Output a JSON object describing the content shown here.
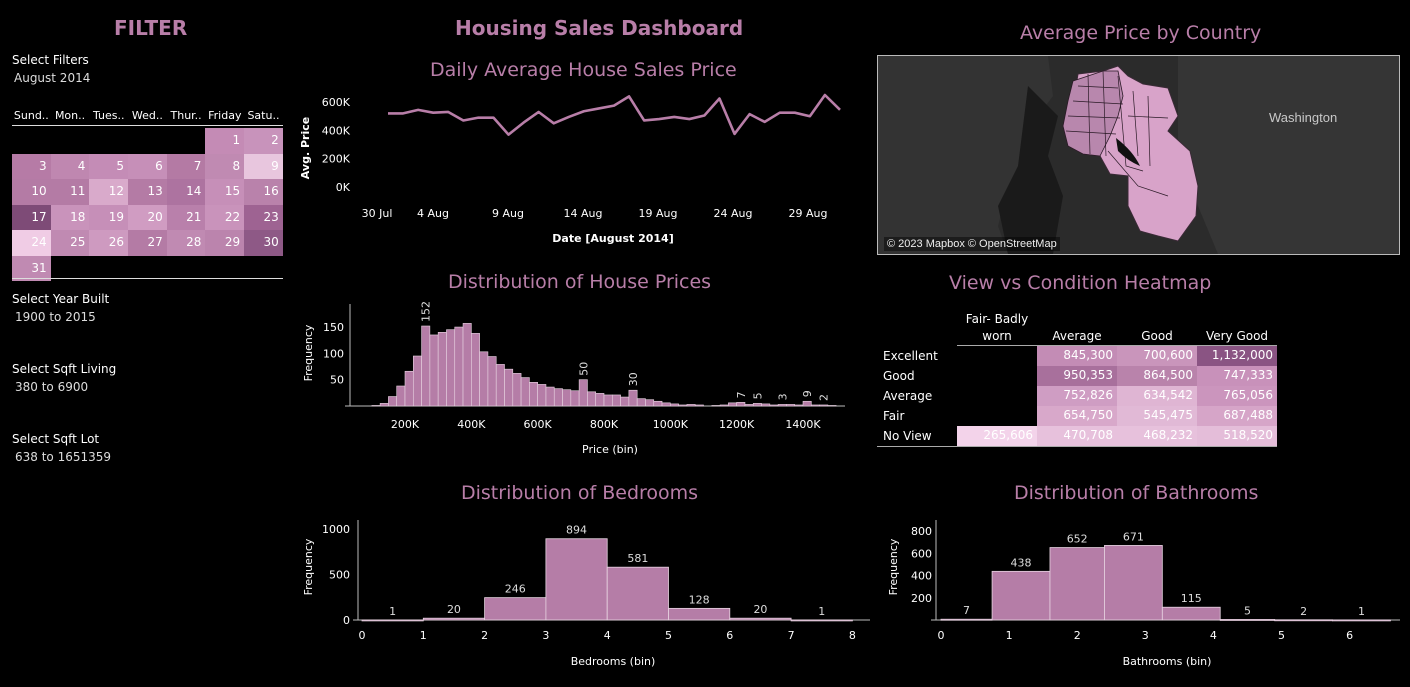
{
  "filter": {
    "title": "FILTER",
    "select_filters_label": "Select Filters",
    "date_value": "August 2014",
    "calendar": {
      "days": [
        "Sund..",
        "Mon..",
        "Tues..",
        "Wed..",
        "Thur..",
        "Friday",
        "Satu.."
      ],
      "start_offset": 5,
      "cells": [
        "1",
        "2",
        "3",
        "4",
        "5",
        "6",
        "7",
        "8",
        "9",
        "10",
        "11",
        "12",
        "13",
        "14",
        "15",
        "16",
        "17",
        "18",
        "19",
        "20",
        "21",
        "22",
        "23",
        "24",
        "25",
        "26",
        "27",
        "28",
        "29",
        "30",
        "31"
      ],
      "colors": [
        "#c48bb5",
        "#c893bb",
        "#b67ba6",
        "#bf87b0",
        "#c48cb6",
        "#c68fb8",
        "#b47aa4",
        "#c08ab2",
        "#e8c6de",
        "#b47ba5",
        "#b47ba5",
        "#d9aacb",
        "#b47ba5",
        "#ad73a0",
        "#c68fb8",
        "#b982ab",
        "#7e4b77",
        "#c993bb",
        "#c68fb8",
        "#d09cc2",
        "#b980ab",
        "#c993bb",
        "#9e6392",
        "#f0cce5",
        "#c08ab2",
        "#ce9ac0",
        "#b47ba5",
        "#c08ab2",
        "#bb84ad",
        "#8e5986",
        "#c08ab2"
      ]
    },
    "year_built": {
      "label": "Select Year Built",
      "value": "1900 to 2015"
    },
    "sqft_living": {
      "label": "Select Sqft Living",
      "value": "380 to 6900"
    },
    "sqft_lot": {
      "label": "Select Sqft Lot",
      "value": "638 to 1651359"
    }
  },
  "dashboard_title": "Housing Sales Dashboard",
  "colors": {
    "accent": "#b87ea8",
    "bar": "#b57da7",
    "background": "#000000",
    "bar_border": "#e8d4e2"
  },
  "map": {
    "title": "Average Price by Country",
    "region_label": "Washington",
    "attribution": "© 2023 Mapbox © OpenStreetMap"
  },
  "heatmap": {
    "title": "View vs Condition Heatmap",
    "columns": [
      "Fair- Badly worn",
      "Average",
      "Good",
      "Very Good"
    ],
    "rows": [
      {
        "label": "Excellent",
        "values": [
          "",
          "845,300",
          "700,600",
          "1,132,000"
        ],
        "colors": [
          "",
          "#c38cb5",
          "#c995bb",
          "#8a5483"
        ]
      },
      {
        "label": "Good",
        "values": [
          "",
          "950,353",
          "864,500",
          "747,333"
        ],
        "colors": [
          "",
          "#a8709c",
          "#b983ab",
          "#c891ba"
        ]
      },
      {
        "label": "Average",
        "values": [
          "",
          "752,826",
          "634,542",
          "765,056"
        ],
        "colors": [
          "",
          "#cf9dc3",
          "#dfb5d3",
          "#cb95bd"
        ]
      },
      {
        "label": "Fair",
        "values": [
          "",
          "654,750",
          "545,475",
          "687,488"
        ],
        "colors": [
          "",
          "#d8a8ca",
          "#e1b9d6",
          "#d6a5c8"
        ]
      },
      {
        "label": "No View",
        "values": [
          "265,606",
          "470,708",
          "468,232",
          "518,520"
        ],
        "colors": [
          "#f3d3ea",
          "#e7c1dc",
          "#e7c1dc",
          "#e4bdd9"
        ]
      }
    ]
  },
  "chart_data": [
    {
      "id": "daily",
      "type": "line",
      "title": "Daily Average House Sales Price",
      "xlabel": "Date [August 2014]",
      "ylabel": "Avg. Price",
      "x_tick_labels": [
        "30 Jul",
        "4 Aug",
        "9 Aug",
        "14 Aug",
        "19 Aug",
        "24 Aug",
        "29 Aug"
      ],
      "y_tick_labels": [
        "0K",
        "200K",
        "400K",
        "600K"
      ],
      "ylim": [
        0,
        650000
      ],
      "series": [
        {
          "values": [
            520000,
            520000,
            545000,
            525000,
            530000,
            470000,
            490000,
            490000,
            370000,
            455000,
            530000,
            450000,
            495000,
            535000,
            555000,
            575000,
            640000,
            470000,
            480000,
            495000,
            480000,
            505000,
            625000,
            375000,
            515000,
            460000,
            525000,
            525000,
            500000,
            650000,
            545000
          ]
        }
      ]
    },
    {
      "id": "prices",
      "type": "bar",
      "title": "Distribution of House Prices",
      "xlabel": "Price (bin)",
      "ylabel": "Frequency",
      "x_tick_labels": [
        "200K",
        "400K",
        "600K",
        "800K",
        "1000K",
        "1200K",
        "1400K"
      ],
      "y_tick_labels": [
        "50",
        "100",
        "150"
      ],
      "ylim": [
        0,
        190
      ],
      "bin_start": 100000,
      "bin_width": 25000,
      "values": [
        1,
        5,
        18,
        38,
        66,
        95,
        152,
        135,
        140,
        145,
        150,
        157,
        138,
        103,
        94,
        79,
        70,
        62,
        54,
        45,
        41,
        36,
        33,
        31,
        29,
        50,
        27,
        24,
        21,
        21,
        17,
        30,
        14,
        12,
        9,
        6,
        4,
        2,
        3,
        2,
        0,
        1,
        2,
        6,
        7,
        3,
        5,
        4,
        2,
        3,
        3,
        2,
        9,
        2,
        2,
        1
      ],
      "data_labels": [
        [
          "152",
          6
        ],
        [
          "50",
          25
        ],
        [
          "30",
          31
        ],
        [
          "7",
          44
        ],
        [
          "5",
          46
        ],
        [
          "3",
          49
        ],
        [
          "9",
          52
        ],
        [
          "2",
          54
        ]
      ]
    },
    {
      "id": "bedrooms",
      "type": "bar",
      "title": "Distribution of Bedrooms",
      "xlabel": "Bedrooms (bin)",
      "ylabel": "Frequency",
      "x_tick_labels": [
        "0",
        "1",
        "2",
        "3",
        "4",
        "5",
        "6",
        "7",
        "8"
      ],
      "y_tick_labels": [
        "0",
        "500",
        "1000"
      ],
      "ylim": [
        0,
        1100
      ],
      "bins": [
        0,
        1,
        2,
        3,
        4,
        5,
        6,
        7
      ],
      "values": [
        1,
        20,
        246,
        894,
        581,
        128,
        20,
        1
      ]
    },
    {
      "id": "bathrooms",
      "type": "bar",
      "title": "Distribution of Bathrooms",
      "xlabel": "Bathrooms (bin)",
      "ylabel": "Frequency",
      "x_tick_labels": [
        "0",
        "1",
        "2",
        "3",
        "4",
        "5",
        "6"
      ],
      "y_tick_labels": [
        "200",
        "400",
        "600",
        "800"
      ],
      "ylim": [
        0,
        900
      ],
      "values": [
        7,
        438,
        652,
        671,
        115,
        5,
        2,
        1
      ]
    }
  ]
}
